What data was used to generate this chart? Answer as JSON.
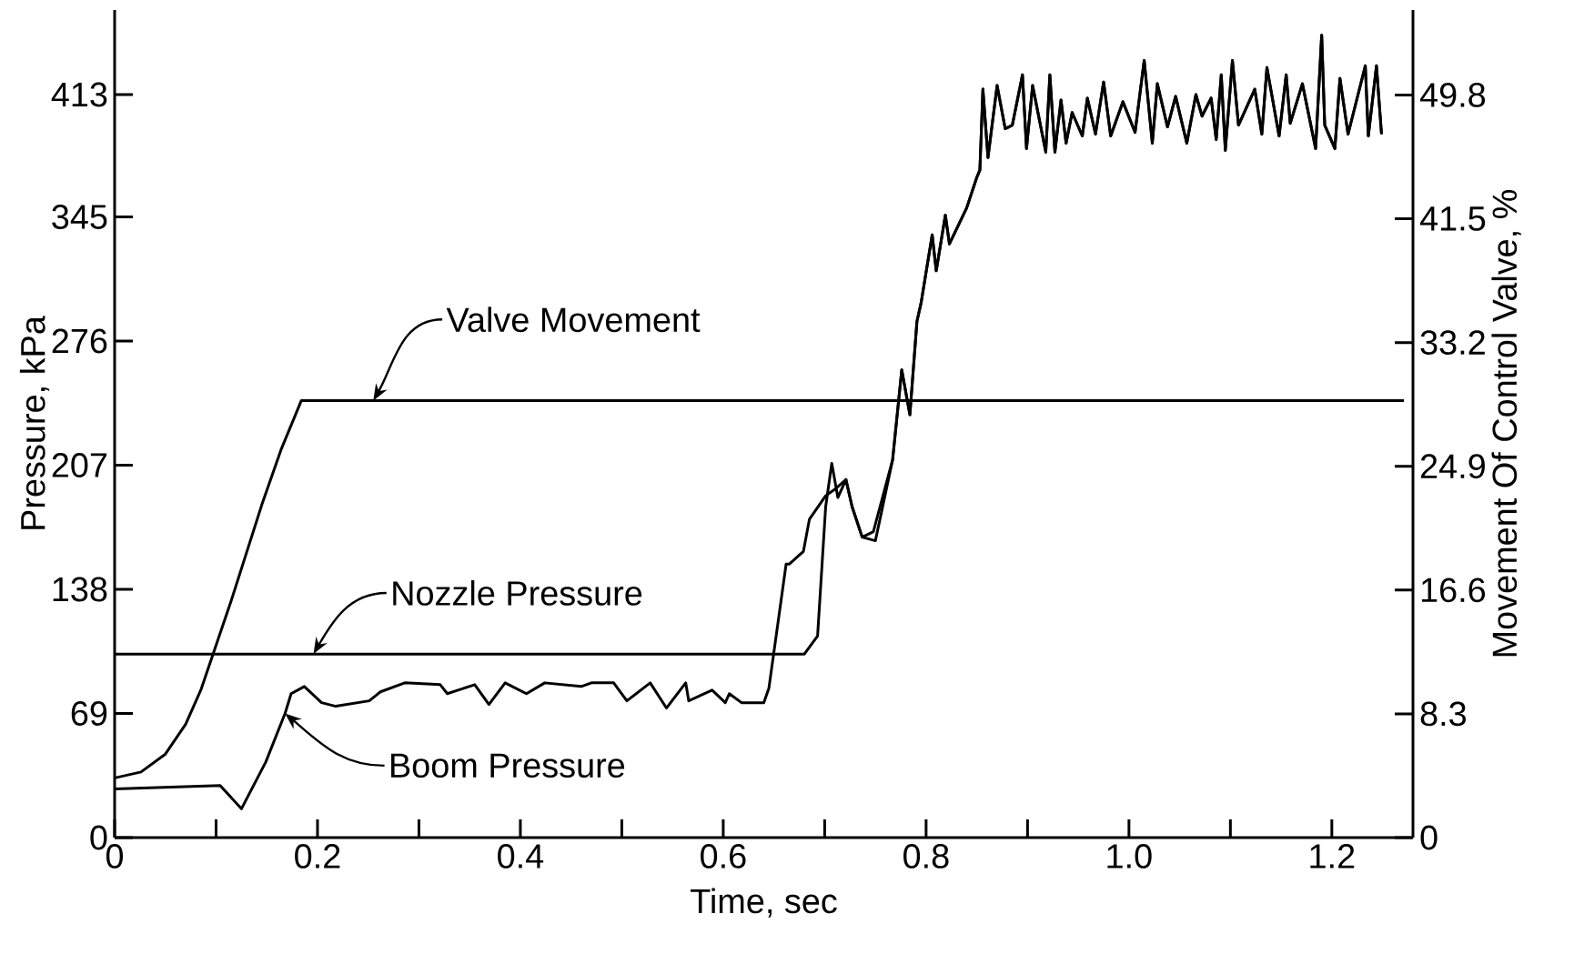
{
  "chart_data": {
    "type": "line",
    "xlabel": "Time, sec",
    "ylabel": "Pressure, kPa",
    "y2label": "Movement Of Control Valve, %",
    "xlim": [
      0,
      1.28
    ],
    "ylim": [
      0,
      460
    ],
    "y2lim": [
      0,
      55.5
    ],
    "xticks": [
      0,
      0.2,
      0.4,
      0.6,
      0.8,
      {
        "value": 1.0,
        "label": "1.0"
      },
      1.2
    ],
    "yticks": [
      0,
      69,
      138,
      207,
      276,
      345,
      413
    ],
    "y2ticks": [
      0,
      8.3,
      16.6,
      24.9,
      33.2,
      41.5,
      49.8
    ],
    "series": [
      {
        "name": "Valve Movement",
        "color": "#000000",
        "axis": "y2",
        "x": [
          0,
          0.026,
          0.05,
          0.07,
          0.085,
          0.115,
          0.145,
          0.164,
          0.184,
          1.271
        ],
        "values": [
          4.0,
          4.4,
          5.6,
          7.6,
          9.9,
          15.9,
          22.3,
          26.0,
          29.3,
          29.3
        ]
      },
      {
        "name": "Nozzle Pressure",
        "color": "#000000",
        "x": [
          0,
          0.68,
          0.693,
          0.701,
          0.707,
          0.713,
          0.721,
          0.727,
          0.737,
          0.75,
          0.767,
          0.776,
          0.784,
          0.791,
          0.795,
          0.806,
          0.81,
          0.819,
          0.823,
          0.84,
          0.85,
          0.853,
          0.856,
          0.861,
          0.87,
          0.878,
          0.885,
          0.895,
          0.899,
          0.905,
          0.918,
          0.922,
          0.927,
          0.933,
          0.938,
          0.944,
          0.954,
          0.959,
          0.967,
          0.975,
          0.982,
          0.994,
          1.006,
          1.015,
          1.023,
          1.028,
          1.038,
          1.046,
          1.057,
          1.066,
          1.072,
          1.081,
          1.086,
          1.091,
          1.095,
          1.102,
          1.108,
          1.124,
          1.131,
          1.136,
          1.148,
          1.155,
          1.159,
          1.171,
          1.184,
          1.19,
          1.193,
          1.203,
          1.208,
          1.216,
          1.233,
          1.236,
          1.244,
          1.249
        ],
        "values": [
          102,
          102,
          112,
          184,
          208,
          189,
          199,
          184,
          167,
          165,
          210,
          260,
          235,
          287,
          297,
          335,
          315,
          346,
          330,
          350,
          367,
          371,
          416,
          378,
          418,
          394,
          396,
          424,
          383,
          418,
          381,
          424,
          381,
          410,
          386,
          403,
          390,
          411,
          391,
          420,
          390,
          409,
          392,
          432,
          386,
          419,
          395,
          412,
          386,
          413,
          401,
          411,
          388,
          424,
          382,
          432,
          396,
          416,
          391,
          428,
          390,
          424,
          397,
          419,
          383,
          446,
          396,
          383,
          422,
          391,
          429,
          390,
          429,
          391
        ]
      },
      {
        "name": "Boom Pressure",
        "color": "#000000",
        "x": [
          0,
          0.104,
          0.125,
          0.149,
          0.168,
          0.174,
          0.187,
          0.204,
          0.218,
          0.251,
          0.262,
          0.286,
          0.321,
          0.328,
          0.355,
          0.369,
          0.385,
          0.406,
          0.424,
          0.46,
          0.47,
          0.492,
          0.505,
          0.528,
          0.544,
          0.563,
          0.566,
          0.589,
          0.602,
          0.606,
          0.618,
          0.64,
          0.645,
          0.662,
          0.665,
          0.679,
          0.685,
          0.701,
          0.711,
          0.721,
          0.727,
          0.737,
          0.748,
          0.767,
          0.776,
          0.784,
          0.791,
          0.795,
          0.806,
          0.81,
          0.819,
          0.823,
          0.84,
          0.85,
          0.853,
          0.856,
          0.861,
          0.87,
          0.878,
          0.885,
          0.895,
          0.899,
          0.905,
          0.918,
          0.922,
          0.927,
          0.933,
          0.938,
          0.944,
          0.954,
          0.959,
          0.967,
          0.975,
          0.982,
          0.994,
          1.006,
          1.015,
          1.023,
          1.028,
          1.038,
          1.046,
          1.057,
          1.066,
          1.072,
          1.081,
          1.086,
          1.091,
          1.095,
          1.102,
          1.108,
          1.124,
          1.131,
          1.136,
          1.148,
          1.155,
          1.159,
          1.171,
          1.184,
          1.19,
          1.193,
          1.203,
          1.208,
          1.216,
          1.233,
          1.236,
          1.244,
          1.249
        ],
        "values": [
          27,
          29,
          16,
          42,
          69,
          80,
          84,
          75,
          73,
          76,
          81,
          86,
          85,
          80,
          85,
          74,
          86,
          80,
          86,
          84,
          86,
          86,
          76,
          86,
          72,
          86,
          76,
          82,
          75,
          80,
          75,
          75,
          83,
          152,
          152,
          159,
          177,
          190,
          194,
          199,
          184,
          167,
          170,
          210,
          260,
          235,
          287,
          297,
          335,
          315,
          346,
          330,
          350,
          367,
          371,
          416,
          378,
          418,
          394,
          396,
          424,
          383,
          418,
          381,
          424,
          381,
          410,
          386,
          403,
          390,
          411,
          391,
          420,
          390,
          409,
          392,
          432,
          386,
          419,
          395,
          412,
          386,
          413,
          401,
          411,
          388,
          424,
          382,
          432,
          396,
          416,
          391,
          428,
          390,
          424,
          397,
          419,
          383,
          446,
          396,
          383,
          422,
          391,
          429,
          390,
          429,
          391
        ]
      }
    ]
  }
}
